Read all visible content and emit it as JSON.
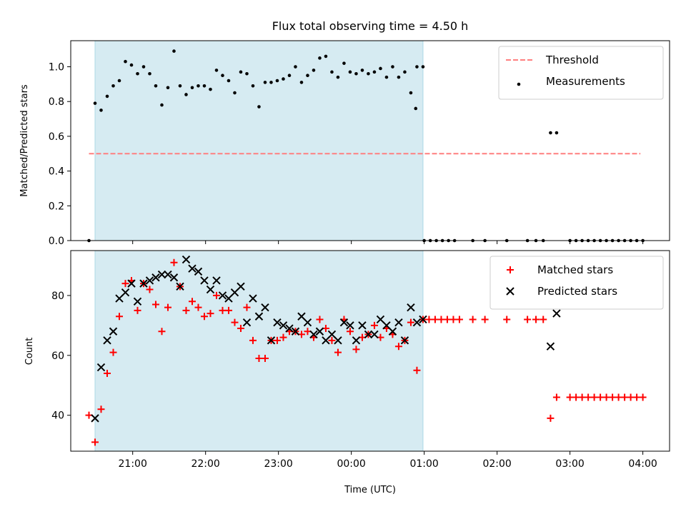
{
  "title": "Flux total observing time = 4.50 h",
  "colors": {
    "shade": "#add8e6",
    "threshold": "#ff7f7f",
    "measurement": "#000000",
    "matched": "#ff0000",
    "predicted": "#000000"
  },
  "chart_data": [
    {
      "type": "scatter",
      "ylabel": "Matched/Predicted stars",
      "xlim": [
        "20:09",
        "04:22"
      ],
      "ylim": [
        0,
        1.15
      ],
      "x_ticks": [
        "21:00",
        "22:00",
        "23:00",
        "00:00",
        "01:00",
        "02:00",
        "03:00",
        "04:00"
      ],
      "y_ticks": [
        "0.0",
        "0.2",
        "0.4",
        "0.6",
        "0.8",
        "1.0"
      ],
      "y_tick_values": [
        0,
        0.2,
        0.4,
        0.6,
        0.8,
        1.0
      ],
      "x_tick_labels_visible": false,
      "shaded_region": [
        "20:29",
        "00:59"
      ],
      "legend": {
        "position": "upper right",
        "entries": [
          {
            "label": "Threshold",
            "style": "dashed-line"
          },
          {
            "label": "Measurements",
            "style": "dot"
          }
        ]
      },
      "threshold": {
        "name": "Threshold",
        "y": 0.5,
        "x_start": "20:24",
        "x_end": "03:58"
      },
      "series": [
        {
          "name": "Measurements",
          "marker": "dot",
          "points": [
            [
              "20:24",
              0.0
            ],
            [
              "20:29",
              0.79
            ],
            [
              "20:34",
              0.75
            ],
            [
              "20:39",
              0.83
            ],
            [
              "20:44",
              0.89
            ],
            [
              "20:49",
              0.92
            ],
            [
              "20:54",
              1.03
            ],
            [
              "20:59",
              1.01
            ],
            [
              "21:04",
              0.96
            ],
            [
              "21:09",
              1.0
            ],
            [
              "21:14",
              0.96
            ],
            [
              "21:19",
              0.89
            ],
            [
              "21:24",
              0.78
            ],
            [
              "21:29",
              0.88
            ],
            [
              "21:34",
              1.09
            ],
            [
              "21:39",
              0.89
            ],
            [
              "21:44",
              0.84
            ],
            [
              "21:49",
              0.88
            ],
            [
              "21:54",
              0.89
            ],
            [
              "21:59",
              0.89
            ],
            [
              "22:04",
              0.87
            ],
            [
              "22:09",
              0.98
            ],
            [
              "22:14",
              0.95
            ],
            [
              "22:19",
              0.92
            ],
            [
              "22:24",
              0.85
            ],
            [
              "22:29",
              0.97
            ],
            [
              "22:34",
              0.96
            ],
            [
              "22:39",
              0.89
            ],
            [
              "22:44",
              0.77
            ],
            [
              "22:49",
              0.91
            ],
            [
              "22:54",
              0.91
            ],
            [
              "22:59",
              0.92
            ],
            [
              "23:04",
              0.93
            ],
            [
              "23:09",
              0.95
            ],
            [
              "23:14",
              1.0
            ],
            [
              "23:19",
              0.91
            ],
            [
              "23:24",
              0.95
            ],
            [
              "23:29",
              0.98
            ],
            [
              "23:34",
              1.05
            ],
            [
              "23:39",
              1.06
            ],
            [
              "23:44",
              0.97
            ],
            [
              "23:49",
              0.94
            ],
            [
              "23:54",
              1.02
            ],
            [
              "23:59",
              0.97
            ],
            [
              "00:04",
              0.96
            ],
            [
              "00:09",
              0.98
            ],
            [
              "00:14",
              0.96
            ],
            [
              "00:19",
              0.97
            ],
            [
              "00:24",
              0.99
            ],
            [
              "00:29",
              0.94
            ],
            [
              "00:34",
              1.0
            ],
            [
              "00:39",
              0.94
            ],
            [
              "00:44",
              0.97
            ],
            [
              "00:49",
              0.85
            ],
            [
              "00:54",
              1.0
            ],
            [
              "00:53",
              0.76
            ],
            [
              "00:59",
              1.0
            ],
            [
              "01:00",
              0.0
            ],
            [
              "01:05",
              0.0
            ],
            [
              "01:10",
              0.0
            ],
            [
              "01:15",
              0.0
            ],
            [
              "01:20",
              0.0
            ],
            [
              "01:25",
              0.0
            ],
            [
              "01:40",
              0.0
            ],
            [
              "01:50",
              0.0
            ],
            [
              "02:08",
              0.0
            ],
            [
              "02:25",
              0.0
            ],
            [
              "02:32",
              0.0
            ],
            [
              "02:38",
              0.0
            ],
            [
              "02:44",
              0.62
            ],
            [
              "02:49",
              0.62
            ],
            [
              "03:00",
              0.0
            ],
            [
              "03:05",
              0.0
            ],
            [
              "03:10",
              0.0
            ],
            [
              "03:15",
              0.0
            ],
            [
              "03:20",
              0.0
            ],
            [
              "03:25",
              0.0
            ],
            [
              "03:30",
              0.0
            ],
            [
              "03:35",
              0.0
            ],
            [
              "03:40",
              0.0
            ],
            [
              "03:45",
              0.0
            ],
            [
              "03:50",
              0.0
            ],
            [
              "03:55",
              0.0
            ],
            [
              "04:00",
              0.0
            ]
          ]
        }
      ]
    },
    {
      "type": "scatter",
      "xlabel": "Time (UTC)",
      "ylabel": "Count",
      "xlim": [
        "20:09",
        "04:22"
      ],
      "ylim": [
        28,
        95
      ],
      "x_ticks": [
        "21:00",
        "22:00",
        "23:00",
        "00:00",
        "01:00",
        "02:00",
        "03:00",
        "04:00"
      ],
      "y_ticks": [
        "40",
        "60",
        "80"
      ],
      "y_tick_values": [
        40,
        60,
        80
      ],
      "shaded_region": [
        "20:29",
        "00:59"
      ],
      "legend": {
        "position": "upper right",
        "entries": [
          {
            "label": "Matched stars",
            "style": "plus"
          },
          {
            "label": "Predicted stars",
            "style": "x"
          }
        ]
      },
      "series": [
        {
          "name": "Matched stars",
          "marker": "plus",
          "points": [
            [
              "20:24",
              40
            ],
            [
              "20:29",
              31
            ],
            [
              "20:34",
              42
            ],
            [
              "20:39",
              54
            ],
            [
              "20:44",
              61
            ],
            [
              "20:49",
              73
            ],
            [
              "20:54",
              84
            ],
            [
              "20:59",
              85
            ],
            [
              "21:04",
              75
            ],
            [
              "21:09",
              84
            ],
            [
              "21:14",
              82
            ],
            [
              "21:19",
              77
            ],
            [
              "21:24",
              68
            ],
            [
              "21:29",
              76
            ],
            [
              "21:34",
              91
            ],
            [
              "21:39",
              83
            ],
            [
              "21:44",
              75
            ],
            [
              "21:49",
              78
            ],
            [
              "21:54",
              76
            ],
            [
              "21:59",
              73
            ],
            [
              "22:04",
              74
            ],
            [
              "22:09",
              80
            ],
            [
              "22:14",
              75
            ],
            [
              "22:19",
              75
            ],
            [
              "22:24",
              71
            ],
            [
              "22:29",
              69
            ],
            [
              "22:34",
              76
            ],
            [
              "22:39",
              65
            ],
            [
              "22:44",
              59
            ],
            [
              "22:49",
              59
            ],
            [
              "22:54",
              65
            ],
            [
              "22:59",
              65
            ],
            [
              "23:04",
              66
            ],
            [
              "23:09",
              68
            ],
            [
              "23:14",
              68
            ],
            [
              "23:19",
              67
            ],
            [
              "23:24",
              68
            ],
            [
              "23:29",
              66
            ],
            [
              "23:34",
              72
            ],
            [
              "23:39",
              69
            ],
            [
              "23:44",
              65
            ],
            [
              "23:49",
              61
            ],
            [
              "23:54",
              72
            ],
            [
              "23:59",
              68
            ],
            [
              "00:04",
              62
            ],
            [
              "00:09",
              66
            ],
            [
              "00:14",
              67
            ],
            [
              "00:19",
              70
            ],
            [
              "00:24",
              66
            ],
            [
              "00:29",
              69
            ],
            [
              "00:34",
              67
            ],
            [
              "00:39",
              63
            ],
            [
              "00:44",
              65
            ],
            [
              "00:49",
              71
            ],
            [
              "00:54",
              55
            ],
            [
              "00:59",
              72
            ],
            [
              "01:04",
              72
            ],
            [
              "01:09",
              72
            ],
            [
              "01:14",
              72
            ],
            [
              "01:19",
              72
            ],
            [
              "01:24",
              72
            ],
            [
              "01:29",
              72
            ],
            [
              "01:40",
              72
            ],
            [
              "01:50",
              72
            ],
            [
              "02:08",
              72
            ],
            [
              "02:25",
              72
            ],
            [
              "02:32",
              72
            ],
            [
              "02:38",
              72
            ],
            [
              "02:44",
              39
            ],
            [
              "02:49",
              46
            ],
            [
              "03:00",
              46
            ],
            [
              "03:05",
              46
            ],
            [
              "03:10",
              46
            ],
            [
              "03:15",
              46
            ],
            [
              "03:20",
              46
            ],
            [
              "03:25",
              46
            ],
            [
              "03:30",
              46
            ],
            [
              "03:35",
              46
            ],
            [
              "03:40",
              46
            ],
            [
              "03:45",
              46
            ],
            [
              "03:50",
              46
            ],
            [
              "03:55",
              46
            ],
            [
              "04:00",
              46
            ]
          ]
        },
        {
          "name": "Predicted stars",
          "marker": "x",
          "points": [
            [
              "20:29",
              39
            ],
            [
              "20:34",
              56
            ],
            [
              "20:39",
              65
            ],
            [
              "20:44",
              68
            ],
            [
              "20:49",
              79
            ],
            [
              "20:54",
              81
            ],
            [
              "20:59",
              84
            ],
            [
              "21:04",
              78
            ],
            [
              "21:09",
              84
            ],
            [
              "21:14",
              85
            ],
            [
              "21:19",
              86
            ],
            [
              "21:24",
              87
            ],
            [
              "21:29",
              87
            ],
            [
              "21:34",
              86
            ],
            [
              "21:39",
              83
            ],
            [
              "21:44",
              92
            ],
            [
              "21:49",
              89
            ],
            [
              "21:54",
              88
            ],
            [
              "21:59",
              85
            ],
            [
              "22:04",
              82
            ],
            [
              "22:09",
              85
            ],
            [
              "22:14",
              80
            ],
            [
              "22:19",
              79
            ],
            [
              "22:24",
              81
            ],
            [
              "22:29",
              83
            ],
            [
              "22:34",
              71
            ],
            [
              "22:39",
              79
            ],
            [
              "22:44",
              73
            ],
            [
              "22:49",
              76
            ],
            [
              "22:54",
              65
            ],
            [
              "22:59",
              71
            ],
            [
              "23:04",
              70
            ],
            [
              "23:09",
              69
            ],
            [
              "23:14",
              68
            ],
            [
              "23:19",
              73
            ],
            [
              "23:24",
              71
            ],
            [
              "23:29",
              67
            ],
            [
              "23:34",
              68
            ],
            [
              "23:39",
              65
            ],
            [
              "23:44",
              67
            ],
            [
              "23:49",
              65
            ],
            [
              "23:54",
              71
            ],
            [
              "23:59",
              70
            ],
            [
              "00:04",
              65
            ],
            [
              "00:09",
              70
            ],
            [
              "00:14",
              67
            ],
            [
              "00:19",
              67
            ],
            [
              "00:24",
              72
            ],
            [
              "00:29",
              70
            ],
            [
              "00:34",
              68
            ],
            [
              "00:39",
              71
            ],
            [
              "00:44",
              65
            ],
            [
              "00:49",
              76
            ],
            [
              "00:54",
              71
            ],
            [
              "00:59",
              72
            ],
            [
              "02:44",
              63
            ],
            [
              "02:49",
              74
            ]
          ]
        }
      ]
    }
  ]
}
